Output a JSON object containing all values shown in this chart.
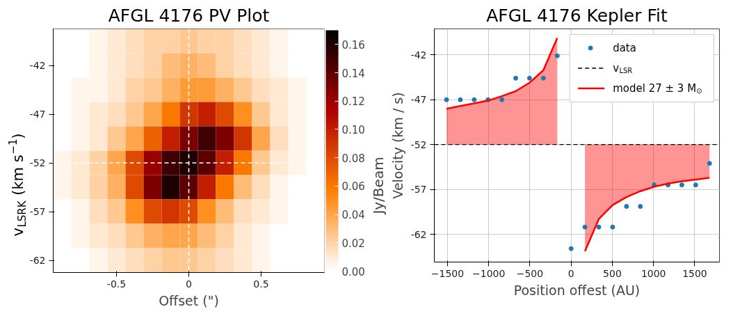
{
  "chart_data": [
    {
      "type": "heatmap",
      "title": "AFGL 4176 PV Plot",
      "xlabel": "Offset (\")",
      "ylabel": "v$_{LSRK}$ (km s$^{−1}$)",
      "clabel": "Jy/Beam",
      "categories": [
        null,
        null,
        null,
        "-0.5",
        null,
        null,
        null,
        "0",
        null,
        null,
        null,
        "0.5",
        null,
        null,
        null
      ],
      "y_categories": [
        null,
        "-42",
        null,
        "-47",
        null,
        "-52",
        null,
        "-57",
        null,
        "-62"
      ],
      "colors": [
        "#ffffff",
        "#ff8000",
        "#b00000",
        "#000000"
      ],
      "clim": [
        0,
        0.17
      ],
      "cticks": [
        {
          "value": 0,
          "label": "0.00"
        },
        {
          "value": 0.02,
          "label": "0.02"
        },
        {
          "value": 0.04,
          "label": "0.04"
        },
        {
          "value": 0.06,
          "label": "0.06"
        },
        {
          "value": 0.08,
          "label": "0.08"
        },
        {
          "value": 0.1,
          "label": "0.10"
        },
        {
          "value": 0.12,
          "label": "0.12"
        },
        {
          "value": 0.14,
          "label": "0.14"
        },
        {
          "value": 0.16,
          "label": "0.16"
        }
      ],
      "cells": [
        [
          0,
          0,
          0.005,
          0.01,
          0.015,
          0.02,
          0.02,
          0.025,
          0.02,
          0.02,
          0.015,
          0.01,
          0.005,
          0,
          0
        ],
        [
          0,
          0,
          0.005,
          0.01,
          0.015,
          0.02,
          0.03,
          0.035,
          0.03,
          0.02,
          0.015,
          0.01,
          0.005,
          0,
          0
        ],
        [
          0,
          0.005,
          0.005,
          0.01,
          0.02,
          0.025,
          0.035,
          0.045,
          0.045,
          0.035,
          0.025,
          0.015,
          0.01,
          0.005,
          0
        ],
        [
          0,
          0.005,
          0.01,
          0.015,
          0.025,
          0.04,
          0.06,
          0.09,
          0.1,
          0.08,
          0.05,
          0.025,
          0.01,
          0.005,
          0
        ],
        [
          0,
          0.005,
          0.01,
          0.025,
          0.04,
          0.07,
          0.1,
          0.13,
          0.15,
          0.13,
          0.09,
          0.04,
          0.015,
          0.005,
          0
        ],
        [
          0.005,
          0.01,
          0.02,
          0.04,
          0.08,
          0.12,
          0.15,
          0.16,
          0.14,
          0.1,
          0.06,
          0.025,
          0.01,
          0.005,
          0
        ],
        [
          0.005,
          0.01,
          0.02,
          0.035,
          0.08,
          0.13,
          0.16,
          0.14,
          0.1,
          0.06,
          0.03,
          0.015,
          0.005,
          0,
          0
        ],
        [
          0,
          0.005,
          0.015,
          0.025,
          0.05,
          0.08,
          0.09,
          0.08,
          0.05,
          0.03,
          0.015,
          0.01,
          0.005,
          0,
          0
        ],
        [
          0,
          0.005,
          0.01,
          0.015,
          0.025,
          0.035,
          0.04,
          0.04,
          0.03,
          0.02,
          0.01,
          0.005,
          0,
          0,
          0
        ],
        [
          0,
          0,
          0.005,
          0.01,
          0.015,
          0.02,
          0.025,
          0.025,
          0.02,
          0.015,
          0.01,
          0.005,
          0,
          0,
          0
        ]
      ],
      "ref_lines": [
        {
          "axis": "x",
          "value": "0",
          "color": "#ffffff",
          "line_style": "dashed"
        },
        {
          "axis": "y",
          "value": "-52",
          "color": "#ffffff",
          "line_style": "dashed"
        }
      ]
    },
    {
      "type": "line",
      "title": "AFGL 4176 Kepler Fit",
      "xlabel": "Position offest (AU)",
      "ylabel": "Velocity (km / s)",
      "xlim": [
        -1660,
        1800
      ],
      "ylim": [
        -65.1,
        -39.1
      ],
      "xticks": [
        {
          "value": -1500,
          "label": "−1500"
        },
        {
          "value": -1000,
          "label": "−1000"
        },
        {
          "value": -500,
          "label": "−500"
        },
        0,
        500,
        1000,
        1500
      ],
      "yticks": [
        -62,
        -57,
        -52,
        -47,
        -42
      ],
      "grid": true,
      "legend": "top right",
      "series": [
        {
          "type": "scatter",
          "name": "data",
          "color": "#1f77b4",
          "marker": "circle",
          "x": [
            -1512,
            -1344,
            -1176,
            -1008,
            -840,
            -672,
            -504,
            -336,
            -168,
            0,
            168,
            336,
            504,
            672,
            840,
            1008,
            1176,
            1344,
            1512,
            1680
          ],
          "values": [
            -47,
            -47,
            -47,
            -47,
            -47,
            -44.6,
            -44.6,
            -44.6,
            -42.1,
            -63.6,
            -61.2,
            -61.2,
            -61.2,
            -58.9,
            -58.9,
            -56.5,
            -56.5,
            -56.5,
            -56.5,
            -54.1
          ]
        },
        {
          "type": "line",
          "name": "model 27 ± 3 M$_{⊙}$",
          "color": "#ff0000",
          "x": [
            -1512,
            -1344,
            -1176,
            -1008,
            -840,
            -672,
            -504,
            -336,
            -168,
            0,
            168,
            336,
            504,
            672,
            840,
            1008,
            1176,
            1344,
            1512,
            1680
          ],
          "values": [
            -48.0,
            -47.7,
            -47.4,
            -47.1,
            -46.6,
            -46.05,
            -45.1,
            -43.7,
            -40.1,
            null,
            -63.9,
            -60.3,
            -58.75,
            -57.85,
            -57.2,
            -56.7,
            -56.35,
            -56.1,
            -55.9,
            -55.7
          ],
          "lower": [
            -52,
            -52,
            -52,
            -52,
            -52,
            -52,
            -52,
            -52,
            -52,
            null,
            -63.9,
            -60.3,
            -58.75,
            -57.85,
            -57.2,
            -56.7,
            -56.35,
            -56.1,
            -55.9,
            -55.7
          ],
          "upper": [
            -48.0,
            -47.7,
            -47.4,
            -47.1,
            -46.6,
            -46.05,
            -45.1,
            -43.7,
            -40.1,
            null,
            -52,
            -52,
            -52,
            -52,
            -52,
            -52,
            -52,
            -52,
            -52,
            -52
          ]
        }
      ],
      "ref_lines": [
        {
          "axis": "y",
          "value": -52,
          "label": "v$_{LSR}$",
          "color": "#000000",
          "line_style": "dashed"
        }
      ]
    }
  ]
}
